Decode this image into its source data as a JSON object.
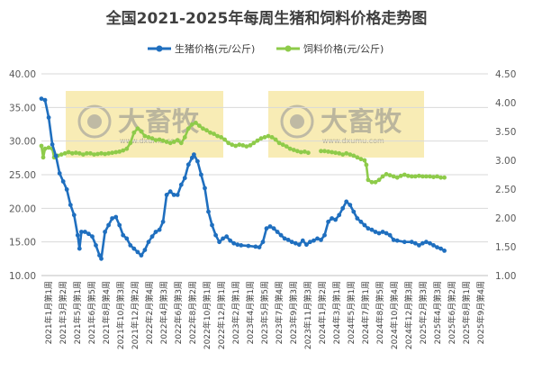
{
  "chart_data": {
    "type": "line",
    "title": "全国2021-2025年每周生猪和饲料价格走势图",
    "legend_position": "top",
    "y_left": {
      "min": 10,
      "max": 40,
      "step": 5,
      "tick_labels": [
        "10.00",
        "15.00",
        "20.00",
        "25.00",
        "30.00",
        "35.00",
        "40.00"
      ]
    },
    "y_right": {
      "min": 1.0,
      "max": 4.5,
      "step": 0.5,
      "tick_labels": [
        "1.00",
        "1.50",
        "2.00",
        "2.50",
        "3.00",
        "3.50",
        "4.00",
        "4.50"
      ]
    },
    "grid": true,
    "x_categories_shown": [
      "2021年1月第1周",
      "2021年3月第2周",
      "2021年5月第1周",
      "2021年6月第5周",
      "2021年8月第4周",
      "2021年10月第3周",
      "2021年12月第2周",
      "2022年2月第4周",
      "2022年4月第3周",
      "2022年6月第3周",
      "2022年8月第2周",
      "2022年10月第1周",
      "2022年12月第1周",
      "2023年2月第1周",
      "2023年4月第1周",
      "2023年5月第5周",
      "2023年7月第4周",
      "2023年9月第3周",
      "2023年11月第3周",
      "2024年1月第2周",
      "2024年3月第1周",
      "2024年5月第1周",
      "2024年7月第1周",
      "2024年8月第5周",
      "2024年10月第4周",
      "2024年12月第3周",
      "2025年2月第3周",
      "2025年4月第3周",
      "2025年6月第2周",
      "2025年8月第1周",
      "2025年9月第4周"
    ],
    "x_range_weeks": [
      0,
      246
    ],
    "series": [
      {
        "name": "生猪价格(元/公斤)",
        "axis": "left",
        "color": "#1f6fbf",
        "points": [
          [
            0,
            36.3
          ],
          [
            2,
            36.1
          ],
          [
            4,
            33.5
          ],
          [
            6,
            29.5
          ],
          [
            8,
            27.8
          ],
          [
            10,
            25.2
          ],
          [
            12,
            24.0
          ],
          [
            14,
            22.8
          ],
          [
            16,
            20.5
          ],
          [
            18,
            19.0
          ],
          [
            20,
            16.0
          ],
          [
            21,
            14.0
          ],
          [
            22,
            16.5
          ],
          [
            24,
            16.5
          ],
          [
            26,
            16.2
          ],
          [
            28,
            15.8
          ],
          [
            30,
            14.5
          ],
          [
            32,
            13.0
          ],
          [
            33,
            12.5
          ],
          [
            35,
            16.5
          ],
          [
            37,
            17.5
          ],
          [
            39,
            18.5
          ],
          [
            41,
            18.7
          ],
          [
            43,
            17.5
          ],
          [
            45,
            16.0
          ],
          [
            47,
            15.5
          ],
          [
            49,
            14.5
          ],
          [
            51,
            14.0
          ],
          [
            53,
            13.5
          ],
          [
            55,
            13.0
          ],
          [
            57,
            13.8
          ],
          [
            59,
            15.0
          ],
          [
            61,
            15.8
          ],
          [
            63,
            16.5
          ],
          [
            65,
            16.8
          ],
          [
            67,
            18.0
          ],
          [
            69,
            22.0
          ],
          [
            71,
            22.5
          ],
          [
            73,
            22.0
          ],
          [
            75,
            22.0
          ],
          [
            77,
            23.5
          ],
          [
            79,
            24.5
          ],
          [
            81,
            26.5
          ],
          [
            83,
            27.5
          ],
          [
            84,
            28.0
          ],
          [
            86,
            27.0
          ],
          [
            88,
            25.0
          ],
          [
            90,
            23.0
          ],
          [
            92,
            19.5
          ],
          [
            94,
            17.5
          ],
          [
            96,
            16.0
          ],
          [
            98,
            15.0
          ],
          [
            100,
            15.5
          ],
          [
            102,
            15.8
          ],
          [
            104,
            15.2
          ],
          [
            106,
            14.8
          ],
          [
            108,
            14.6
          ],
          [
            110,
            14.5
          ],
          [
            114,
            14.4
          ],
          [
            118,
            14.3
          ],
          [
            120,
            14.2
          ],
          [
            122,
            15.0
          ],
          [
            124,
            17.0
          ],
          [
            126,
            17.3
          ],
          [
            128,
            17.0
          ],
          [
            130,
            16.5
          ],
          [
            132,
            16.0
          ],
          [
            134,
            15.5
          ],
          [
            136,
            15.3
          ],
          [
            138,
            15.0
          ],
          [
            140,
            14.8
          ],
          [
            142,
            14.6
          ],
          [
            144,
            15.2
          ],
          [
            146,
            14.6
          ],
          [
            148,
            15.0
          ],
          [
            150,
            15.2
          ],
          [
            152,
            15.5
          ],
          [
            154,
            15.3
          ],
          [
            156,
            16.0
          ],
          [
            158,
            18.0
          ],
          [
            160,
            18.5
          ],
          [
            162,
            18.3
          ],
          [
            164,
            19.0
          ],
          [
            166,
            20.0
          ],
          [
            168,
            21.0
          ],
          [
            170,
            20.5
          ],
          [
            172,
            19.5
          ],
          [
            174,
            18.5
          ],
          [
            176,
            18.0
          ],
          [
            178,
            17.5
          ],
          [
            180,
            17.0
          ],
          [
            182,
            16.8
          ],
          [
            184,
            16.5
          ],
          [
            186,
            16.3
          ],
          [
            188,
            16.5
          ],
          [
            190,
            16.3
          ],
          [
            192,
            16.0
          ],
          [
            194,
            15.3
          ],
          [
            196,
            15.2
          ],
          [
            200,
            15.0
          ],
          [
            204,
            15.0
          ],
          [
            206,
            14.8
          ],
          [
            208,
            14.5
          ],
          [
            210,
            14.8
          ],
          [
            212,
            15.0
          ],
          [
            214,
            14.8
          ],
          [
            216,
            14.5
          ],
          [
            218,
            14.2
          ],
          [
            220,
            14.0
          ],
          [
            222,
            13.7
          ]
        ]
      },
      {
        "name": "饲料价格(元/公斤)",
        "axis": "right",
        "color": "#8ecb4a",
        "points": [
          [
            0,
            3.25
          ],
          [
            1,
            3.05
          ],
          [
            2,
            3.2
          ],
          [
            4,
            3.22
          ],
          [
            6,
            3.2
          ],
          [
            7,
            3.05
          ],
          [
            9,
            3.08
          ],
          [
            11,
            3.1
          ],
          [
            13,
            3.12
          ],
          [
            15,
            3.14
          ],
          [
            17,
            3.12
          ],
          [
            19,
            3.13
          ],
          [
            21,
            3.12
          ],
          [
            23,
            3.1
          ],
          [
            25,
            3.12
          ],
          [
            27,
            3.12
          ],
          [
            29,
            3.1
          ],
          [
            31,
            3.11
          ],
          [
            33,
            3.12
          ],
          [
            35,
            3.11
          ],
          [
            37,
            3.12
          ],
          [
            39,
            3.13
          ],
          [
            41,
            3.14
          ],
          [
            43,
            3.15
          ],
          [
            45,
            3.17
          ],
          [
            47,
            3.2
          ],
          [
            49,
            3.3
          ],
          [
            51,
            3.48
          ],
          [
            53,
            3.55
          ],
          [
            55,
            3.5
          ],
          [
            57,
            3.42
          ],
          [
            59,
            3.4
          ],
          [
            61,
            3.38
          ],
          [
            63,
            3.35
          ],
          [
            65,
            3.36
          ],
          [
            67,
            3.34
          ],
          [
            69,
            3.32
          ],
          [
            71,
            3.3
          ],
          [
            73,
            3.32
          ],
          [
            75,
            3.35
          ],
          [
            77,
            3.3
          ],
          [
            79,
            3.4
          ],
          [
            81,
            3.55
          ],
          [
            83,
            3.62
          ],
          [
            85,
            3.65
          ],
          [
            87,
            3.6
          ],
          [
            89,
            3.55
          ],
          [
            91,
            3.52
          ],
          [
            93,
            3.48
          ],
          [
            95,
            3.46
          ],
          [
            97,
            3.42
          ],
          [
            99,
            3.4
          ],
          [
            101,
            3.36
          ],
          [
            103,
            3.3
          ],
          [
            105,
            3.27
          ],
          [
            107,
            3.25
          ],
          [
            109,
            3.27
          ],
          [
            111,
            3.26
          ],
          [
            113,
            3.24
          ],
          [
            115,
            3.26
          ],
          [
            117,
            3.3
          ],
          [
            119,
            3.34
          ],
          [
            121,
            3.38
          ],
          [
            123,
            3.4
          ],
          [
            125,
            3.42
          ],
          [
            127,
            3.4
          ],
          [
            129,
            3.36
          ],
          [
            131,
            3.3
          ],
          [
            133,
            3.27
          ],
          [
            135,
            3.24
          ],
          [
            137,
            3.2
          ],
          [
            139,
            3.18
          ],
          [
            141,
            3.16
          ],
          [
            143,
            3.14
          ],
          [
            145,
            3.15
          ],
          [
            147,
            3.13
          ],
          [
            149,
            3.14
          ],
          [
            151,
            3.12
          ],
          [
            154,
            3.16
          ],
          [
            156,
            3.16
          ],
          [
            158,
            3.15
          ],
          [
            160,
            3.14
          ],
          [
            162,
            3.13
          ],
          [
            164,
            3.12
          ],
          [
            166,
            3.1
          ],
          [
            168,
            3.12
          ],
          [
            170,
            3.1
          ],
          [
            172,
            3.08
          ],
          [
            174,
            3.05
          ],
          [
            176,
            3.02
          ],
          [
            178,
            3.0
          ],
          [
            179,
            2.92
          ],
          [
            180,
            2.66
          ],
          [
            182,
            2.62
          ],
          [
            184,
            2.62
          ],
          [
            186,
            2.66
          ],
          [
            188,
            2.72
          ],
          [
            190,
            2.76
          ],
          [
            192,
            2.74
          ],
          [
            194,
            2.72
          ],
          [
            196,
            2.7
          ],
          [
            198,
            2.73
          ],
          [
            200,
            2.75
          ],
          [
            202,
            2.73
          ],
          [
            204,
            2.72
          ],
          [
            206,
            2.72
          ],
          [
            208,
            2.73
          ],
          [
            210,
            2.72
          ],
          [
            212,
            2.72
          ],
          [
            214,
            2.72
          ],
          [
            216,
            2.71
          ],
          [
            218,
            2.72
          ],
          [
            220,
            2.7
          ],
          [
            222,
            2.7
          ]
        ]
      }
    ],
    "gap_in_feed_series_weeks": [
      [
        148,
        154
      ]
    ]
  },
  "watermark": {
    "brand": "大畜牧",
    "url": "www.dxumu.com"
  },
  "colors": {
    "highlight_box": "#f7e9a8",
    "grid": "#d9d9d9",
    "axis": "#bfbfbf"
  }
}
